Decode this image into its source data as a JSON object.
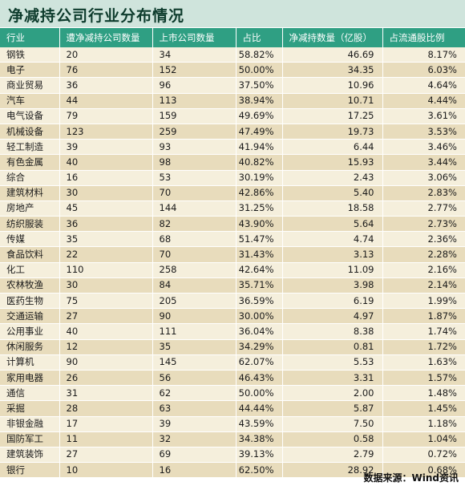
{
  "title": "净减持公司行业分布情况",
  "columns": [
    "行业",
    "遭净减持公司数量",
    "上市公司数量",
    "占比",
    "净减持数量（亿股）",
    "占流通股比例"
  ],
  "rows": [
    [
      "钢铁",
      "20",
      "34",
      "58.82%",
      "46.69",
      "8.17%"
    ],
    [
      "电子",
      "76",
      "152",
      "50.00%",
      "34.35",
      "6.03%"
    ],
    [
      "商业贸易",
      "36",
      "96",
      "37.50%",
      "10.96",
      "4.64%"
    ],
    [
      "汽车",
      "44",
      "113",
      "38.94%",
      "10.71",
      "4.44%"
    ],
    [
      "电气设备",
      "79",
      "159",
      "49.69%",
      "17.25",
      "3.61%"
    ],
    [
      "机械设备",
      "123",
      "259",
      "47.49%",
      "19.73",
      "3.53%"
    ],
    [
      "轻工制造",
      "39",
      "93",
      "41.94%",
      "6.44",
      "3.46%"
    ],
    [
      "有色金属",
      "40",
      "98",
      "40.82%",
      "15.93",
      "3.44%"
    ],
    [
      "综合",
      "16",
      "53",
      "30.19%",
      "2.43",
      "3.06%"
    ],
    [
      "建筑材料",
      "30",
      "70",
      "42.86%",
      "5.40",
      "2.83%"
    ],
    [
      "房地产",
      "45",
      "144",
      "31.25%",
      "18.58",
      "2.77%"
    ],
    [
      "纺织服装",
      "36",
      "82",
      "43.90%",
      "5.64",
      "2.73%"
    ],
    [
      "传媒",
      "35",
      "68",
      "51.47%",
      "4.74",
      "2.36%"
    ],
    [
      "食品饮料",
      "22",
      "70",
      "31.43%",
      "3.13",
      "2.28%"
    ],
    [
      "化工",
      "110",
      "258",
      "42.64%",
      "11.09",
      "2.16%"
    ],
    [
      "农林牧渔",
      "30",
      "84",
      "35.71%",
      "3.98",
      "2.14%"
    ],
    [
      "医药生物",
      "75",
      "205",
      "36.59%",
      "6.19",
      "1.99%"
    ],
    [
      "交通运输",
      "27",
      "90",
      "30.00%",
      "4.97",
      "1.87%"
    ],
    [
      "公用事业",
      "40",
      "111",
      "36.04%",
      "8.38",
      "1.74%"
    ],
    [
      "休闲服务",
      "12",
      "35",
      "34.29%",
      "0.81",
      "1.72%"
    ],
    [
      "计算机",
      "90",
      "145",
      "62.07%",
      "5.53",
      "1.63%"
    ],
    [
      "家用电器",
      "26",
      "56",
      "46.43%",
      "3.31",
      "1.57%"
    ],
    [
      "通信",
      "31",
      "62",
      "50.00%",
      "2.00",
      "1.48%"
    ],
    [
      "采掘",
      "28",
      "63",
      "44.44%",
      "5.87",
      "1.45%"
    ],
    [
      "非银金融",
      "17",
      "39",
      "43.59%",
      "7.50",
      "1.18%"
    ],
    [
      "国防军工",
      "11",
      "32",
      "34.38%",
      "0.58",
      "1.04%"
    ],
    [
      "建筑装饰",
      "27",
      "69",
      "39.13%",
      "2.79",
      "0.72%"
    ],
    [
      "银行",
      "10",
      "16",
      "62.50%",
      "28.92",
      "0.68%"
    ]
  ],
  "source": "数据来源：Wind资讯",
  "colors": {
    "title_bg": "#cfe4dc",
    "header_bg": "#2f9f83",
    "row_light": "#f5efdc",
    "row_dark": "#e8dcbc"
  }
}
